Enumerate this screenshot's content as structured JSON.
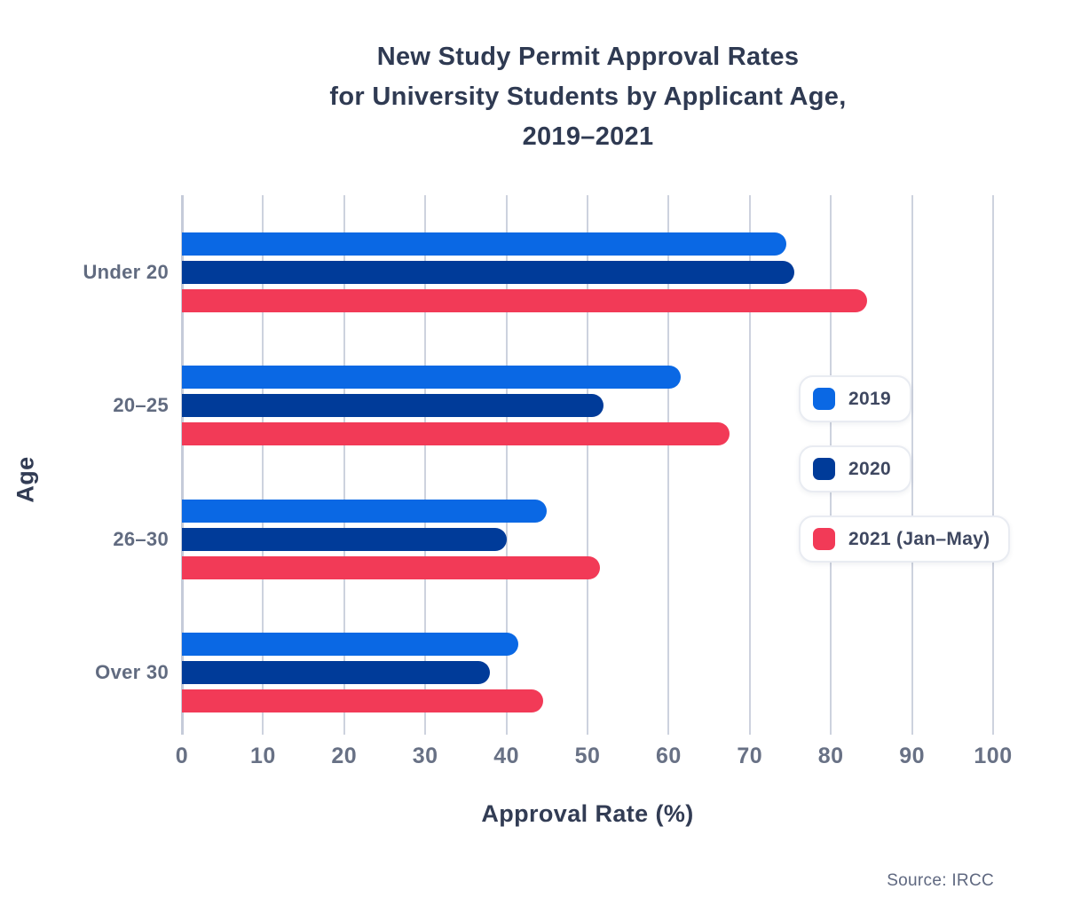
{
  "title_lines": [
    "New Study Permit Approval Rates",
    "for University Students by Applicant Age,",
    "2019–2021"
  ],
  "source": "Source: IRCC",
  "colors": {
    "background": "#ffffff",
    "title_text": "#2f3a52",
    "axis_text": "#616b80",
    "gridline": "#cdd2de",
    "series_2019": "#0a68e4",
    "series_2020": "#003b99",
    "series_2021": "#f23a57"
  },
  "chart_data": {
    "type": "bar",
    "orientation": "horizontal",
    "title": "New Study Permit Approval Rates for University Students by Applicant Age, 2019–2021",
    "categories": [
      "Under 20",
      "20–25",
      "26–30",
      "Over 30"
    ],
    "series": [
      {
        "name": "2019",
        "color": "#0a68e4",
        "values": [
          74.5,
          61.5,
          45,
          41.5
        ]
      },
      {
        "name": "2020",
        "color": "#003b99",
        "values": [
          75.5,
          52,
          40,
          38
        ]
      },
      {
        "name": "2021 (Jan–May)",
        "color": "#f23a57",
        "values": [
          84.5,
          67.5,
          51.5,
          44.5
        ]
      }
    ],
    "xlabel": "Approval Rate (%)",
    "ylabel": "Age",
    "xlim": [
      0,
      100
    ],
    "xticks": [
      0,
      10,
      20,
      30,
      40,
      50,
      60,
      70,
      80,
      90,
      100
    ],
    "grid": true,
    "legend_position": "right",
    "source": "Source: IRCC"
  }
}
